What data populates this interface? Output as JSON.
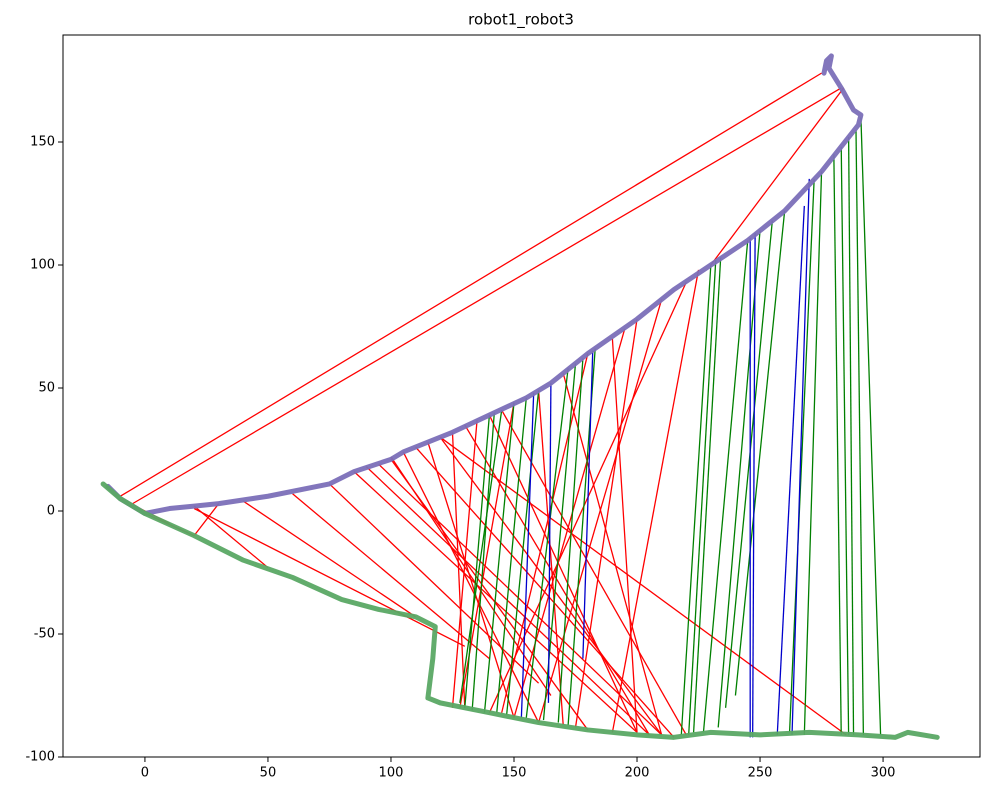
{
  "chart_data": {
    "type": "trajectory-match",
    "title": "robot1_robot3",
    "xlim": [
      -33.3,
      339.4
    ],
    "ylim": [
      -100,
      193.5
    ],
    "xticks": [
      0,
      50,
      100,
      150,
      200,
      250,
      300
    ],
    "yticks": [
      -100,
      -50,
      0,
      50,
      100,
      150
    ],
    "matches": [
      {
        "color": "#ff0000",
        "segments": [
          [
            -10,
            5,
            10,
            -5
          ],
          [
            0,
            -1,
            20,
            -10
          ],
          [
            20,
            2,
            50,
            -23
          ],
          [
            30,
            3,
            20,
            -10
          ],
          [
            40,
            4,
            110,
            -43
          ],
          [
            60,
            7,
            140,
            -60
          ],
          [
            75,
            11,
            160,
            -70
          ],
          [
            85,
            16,
            200,
            -90
          ],
          [
            95,
            19,
            210,
            -91
          ],
          [
            100,
            21,
            180,
            -89
          ],
          [
            105,
            24,
            160,
            -86
          ],
          [
            110,
            26,
            215,
            -92
          ],
          [
            115,
            28,
            150,
            -84
          ],
          [
            120,
            30,
            210,
            -91
          ],
          [
            125,
            32,
            130,
            -80
          ],
          [
            130,
            35,
            205,
            -91
          ],
          [
            135,
            37,
            125,
            -80
          ],
          [
            140,
            39,
            200,
            -90
          ],
          [
            145,
            41,
            220,
            -91
          ],
          [
            150,
            44,
            128,
            -80
          ],
          [
            160,
            49,
            170,
            -87
          ],
          [
            170,
            56,
            210,
            -91
          ],
          [
            180,
            64,
            145,
            -82
          ],
          [
            190,
            70,
            200,
            -90
          ],
          [
            195,
            74,
            150,
            -84
          ],
          [
            200,
            78,
            175,
            -88
          ],
          [
            210,
            86,
            160,
            -86
          ],
          [
            220,
            93,
            140,
            -82
          ],
          [
            225,
            98,
            190,
            -90
          ],
          [
            -5,
            3,
            283,
            172
          ],
          [
            -10,
            6,
            275,
            178
          ],
          [
            230,
            100,
            284,
            172
          ],
          [
            120,
            30,
            285,
            -91
          ],
          [
            20,
            1,
            130,
            -55
          ],
          [
            90,
            18,
            205,
            -91
          ],
          [
            100,
            22,
            165,
            -75
          ]
        ]
      },
      {
        "color": "#008000",
        "segments": [
          [
            140,
            39,
            130,
            -80
          ],
          [
            142,
            40,
            133,
            -81
          ],
          [
            145,
            41,
            128,
            -78
          ],
          [
            150,
            44,
            138,
            -82
          ],
          [
            155,
            46,
            143,
            -82
          ],
          [
            160,
            49,
            147,
            -83
          ],
          [
            172,
            58,
            155,
            -84
          ],
          [
            175,
            60,
            162,
            -85
          ],
          [
            178,
            62,
            168,
            -86
          ],
          [
            183,
            66,
            172,
            -87
          ],
          [
            230,
            100,
            218,
            -91
          ],
          [
            232,
            102,
            221,
            -91
          ],
          [
            234,
            103,
            223,
            -90
          ],
          [
            245,
            110,
            227,
            -90
          ],
          [
            250,
            114,
            233,
            -88
          ],
          [
            255,
            118,
            236,
            -80
          ],
          [
            260,
            122,
            240,
            -75
          ],
          [
            272,
            135,
            262,
            -90
          ],
          [
            275,
            138,
            268,
            -91
          ],
          [
            280,
            145,
            283,
            -91
          ],
          [
            283,
            148,
            286,
            -91
          ],
          [
            286,
            152,
            288,
            -91
          ],
          [
            289,
            155,
            292,
            -91
          ],
          [
            291,
            160,
            299,
            -91
          ]
        ]
      },
      {
        "color": "#0000cc",
        "segments": [
          [
            158,
            48,
            153,
            -84
          ],
          [
            165,
            52,
            164,
            -78
          ],
          [
            182,
            65,
            178,
            -60
          ],
          [
            246,
            111,
            246,
            -92
          ],
          [
            248,
            113,
            247,
            -92
          ],
          [
            268,
            124,
            257,
            -91
          ],
          [
            270,
            135,
            263,
            -91
          ]
        ]
      }
    ],
    "trajectories": [
      {
        "color": "#7b6fb8",
        "x": [
          -15,
          -10,
          0,
          10,
          20,
          30,
          50,
          75,
          85,
          100,
          105,
          125,
          140,
          155,
          165,
          180,
          200,
          215,
          230,
          245,
          260,
          275,
          290,
          291,
          288,
          283,
          278,
          279,
          277,
          276
        ],
        "y": [
          10,
          5,
          -1,
          1,
          2,
          3,
          6,
          11,
          16,
          21,
          24,
          32,
          39,
          46,
          52,
          64,
          78,
          90,
          100,
          110,
          122,
          138,
          157,
          161,
          163,
          172,
          180,
          185,
          183,
          178
        ]
      },
      {
        "color": "#5aa864",
        "x": [
          -17,
          -10,
          0,
          20,
          40,
          60,
          80,
          95,
          110,
          118,
          117,
          115,
          120,
          140,
          160,
          180,
          200,
          215,
          230,
          250,
          270,
          290,
          305,
          310,
          322
        ],
        "y": [
          11,
          5,
          -1,
          -10,
          -20,
          -27,
          -36,
          -40,
          -43,
          -47,
          -60,
          -76,
          -78,
          -82,
          -86,
          -89,
          -91,
          -92,
          -90,
          -91,
          -90,
          -91,
          -92,
          -90,
          -92
        ]
      }
    ]
  }
}
